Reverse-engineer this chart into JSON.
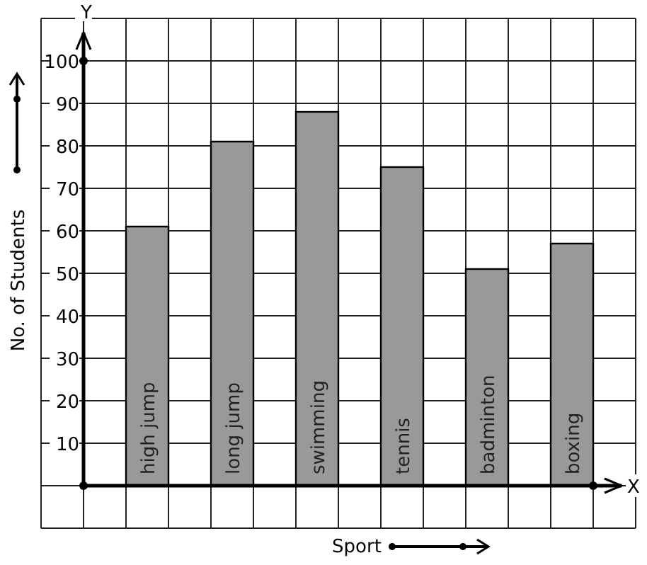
{
  "chart_data": {
    "type": "bar",
    "xlabel": "Sport",
    "ylabel": "No. of Students",
    "categories": [
      "high jump",
      "long jump",
      "swimming",
      "tennis",
      "badminton",
      "boxing"
    ],
    "values": [
      61,
      81,
      88,
      75,
      51,
      57
    ],
    "color": "#999999",
    "ylim": [
      -10,
      110
    ],
    "yticks": [
      10,
      20,
      30,
      40,
      50,
      60,
      70,
      80,
      90,
      100
    ],
    "grid": true,
    "annotations": [
      "Y",
      "X"
    ]
  }
}
